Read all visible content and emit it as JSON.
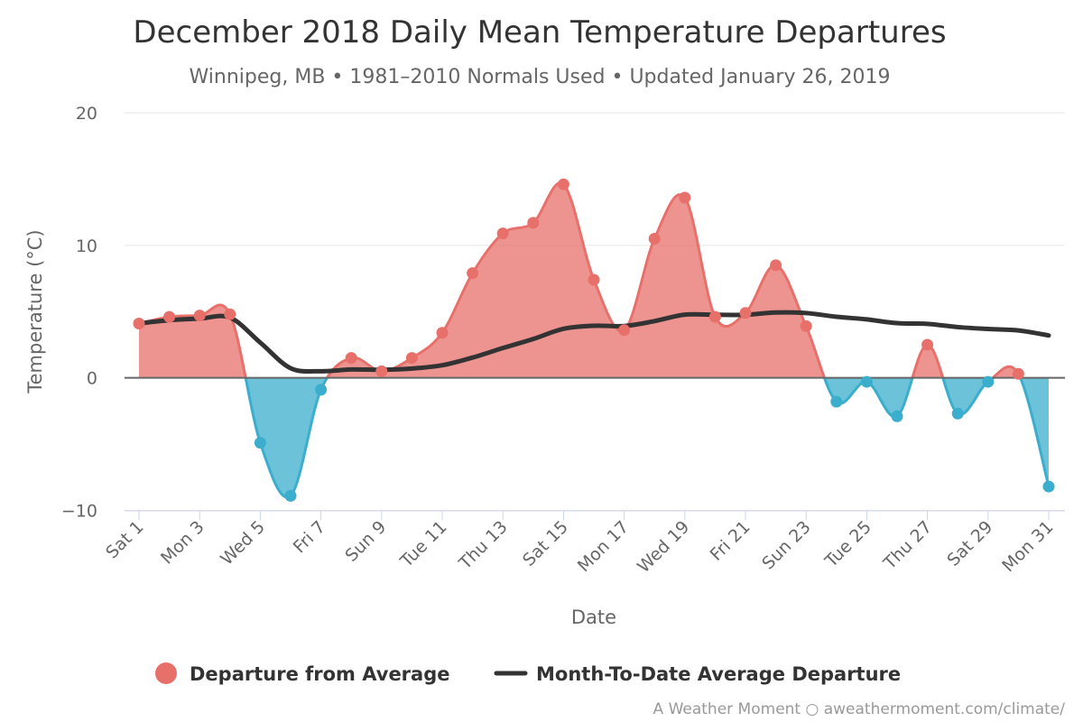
{
  "chart_data": {
    "type": "area",
    "title": "December 2018 Daily Mean Temperature Departures",
    "subtitle": "Winnipeg, MB • 1981–2010 Normals Used • Updated January 26, 2019",
    "xlabel": "Date",
    "ylabel": "Temperature (°C)",
    "ylim": [
      -10,
      20
    ],
    "y_ticks": [
      -10,
      0,
      10,
      20
    ],
    "y_tick_labels": [
      "−10",
      "0",
      "10",
      "20"
    ],
    "x": [
      1,
      2,
      3,
      4,
      5,
      6,
      7,
      8,
      9,
      10,
      11,
      12,
      13,
      14,
      15,
      16,
      17,
      18,
      19,
      20,
      21,
      22,
      23,
      24,
      25,
      26,
      27,
      28,
      29,
      30,
      31
    ],
    "x_tick_values": [
      1,
      3,
      5,
      7,
      9,
      11,
      13,
      15,
      17,
      19,
      21,
      23,
      25,
      27,
      29,
      31
    ],
    "x_tick_labels": [
      "Sat 1",
      "Mon 3",
      "Wed 5",
      "Fri 7",
      "Sun 9",
      "Tue 11",
      "Thu 13",
      "Sat 15",
      "Mon 17",
      "Wed 19",
      "Fri 21",
      "Sun 23",
      "Tue 25",
      "Thu 27",
      "Sat 29",
      "Mon 31"
    ],
    "grid": true,
    "legend_position": "bottom",
    "series": [
      {
        "name": "Departure from Average",
        "type": "area",
        "values": [
          4.1,
          4.6,
          4.7,
          4.8,
          -4.9,
          -8.9,
          -0.9,
          1.5,
          0.5,
          1.5,
          3.4,
          7.9,
          10.9,
          11.7,
          14.6,
          7.4,
          3.6,
          10.5,
          13.6,
          4.6,
          4.9,
          8.5,
          3.9,
          -1.8,
          -0.3,
          -2.9,
          2.5,
          -2.7,
          -0.3,
          0.3,
          -8.2
        ],
        "positive_color": "#e8706b",
        "negative_color": "#3aaecc"
      },
      {
        "name": "Month-To-Date Average Departure",
        "type": "line",
        "values": [
          4.1,
          4.35,
          4.47,
          4.55,
          2.66,
          0.73,
          0.5,
          0.63,
          0.61,
          0.7,
          0.95,
          1.53,
          2.25,
          2.93,
          3.7,
          3.93,
          3.91,
          4.28,
          4.77,
          4.76,
          4.76,
          4.93,
          4.89,
          4.61,
          4.41,
          4.13,
          4.07,
          3.83,
          3.69,
          3.58,
          3.2
        ],
        "color": "#333333"
      }
    ],
    "credit": "A Weather Moment ○ aweathermoment.com/climate/"
  }
}
